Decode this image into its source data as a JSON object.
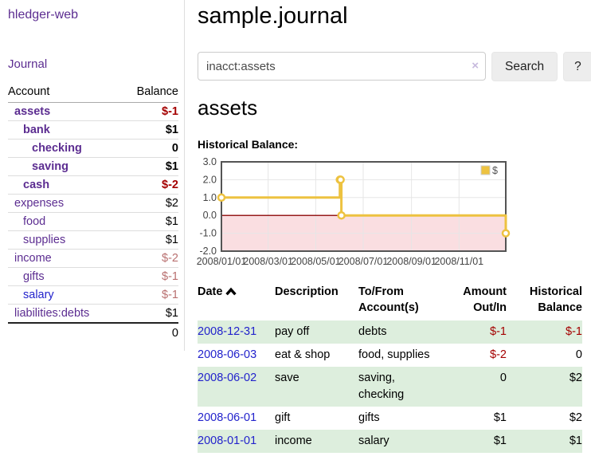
{
  "colors": {
    "purple": "#5c2d91",
    "blue": "#2222cc",
    "neg": "#a40000",
    "neg-muted": "#b97070",
    "row-green": "#ddeedd",
    "gold": "#edc240",
    "chart-frame": "#545454"
  },
  "sidebar": {
    "app_title": "hledger-web",
    "journal_label": "Journal",
    "accounts_header": {
      "account": "Account",
      "balance": "Balance"
    },
    "accounts": [
      {
        "name": "assets",
        "level": 1,
        "bold": true,
        "balance": "$-1",
        "tone": "neg"
      },
      {
        "name": "bank",
        "level": 2,
        "bold": true,
        "balance": "$1",
        "tone": "normal"
      },
      {
        "name": "checking",
        "level": 3,
        "bold": true,
        "balance": "0",
        "tone": "normal"
      },
      {
        "name": "saving",
        "level": 3,
        "bold": true,
        "balance": "$1",
        "tone": "normal"
      },
      {
        "name": "cash",
        "level": 2,
        "bold": true,
        "balance": "$-2",
        "tone": "neg"
      },
      {
        "name": "expenses",
        "level": 1,
        "bold": false,
        "balance": "$2",
        "tone": "normal"
      },
      {
        "name": "food",
        "level": 2,
        "bold": false,
        "balance": "$1",
        "tone": "normal"
      },
      {
        "name": "supplies",
        "level": 2,
        "bold": false,
        "balance": "$1",
        "tone": "normal"
      },
      {
        "name": "income",
        "level": 1,
        "bold": false,
        "balance": "$-2",
        "tone": "neg-muted"
      },
      {
        "name": "gifts",
        "level": 2,
        "bold": false,
        "balance": "$-1",
        "tone": "neg-muted"
      },
      {
        "name": "salary",
        "level": 2,
        "bold": false,
        "balance": "$-1",
        "tone": "neg-muted",
        "link_color": "blue"
      },
      {
        "name": "liabilities:debts",
        "level": 1,
        "bold": false,
        "balance": "$1",
        "tone": "normal"
      }
    ],
    "total": "0"
  },
  "main": {
    "title": "sample.journal",
    "search": {
      "query": "inacct:assets",
      "clear_icon": "×",
      "search_button": "Search",
      "help_button": "?"
    },
    "account_heading": "assets",
    "chart_label": "Historical Balance:"
  },
  "chart_data": {
    "type": "line",
    "step": true,
    "title": "Historical Balance:",
    "series": [
      {
        "name": "$",
        "color": "#edc240",
        "points": [
          [
            "2008-01-01",
            1
          ],
          [
            "2008-06-01",
            2
          ],
          [
            "2008-06-02",
            2
          ],
          [
            "2008-06-03",
            0
          ],
          [
            "2008-12-31",
            -1
          ]
        ]
      }
    ],
    "x_ticks": [
      "2008/01/01",
      "2008/03/01",
      "2008/05/01",
      "2008/07/01",
      "2008/09/01",
      "2008/11/01"
    ],
    "y_ticks": [
      "3.0",
      "2.0",
      "1.0",
      "0.0",
      "-1.0",
      "-2.0"
    ],
    "xlim": [
      "2008-01-01",
      "2008-12-31"
    ],
    "ylim": [
      -2,
      3
    ],
    "grid": true,
    "gridline_color": "#e6e6e6",
    "frame_color": "#545454",
    "negative_region_color": "#fadee1",
    "zero_line_color": "#971c1c",
    "tick_label_color": "#444444",
    "legend": {
      "label": "$",
      "position": "top-right"
    }
  },
  "register": {
    "columns": [
      "Date",
      "Description",
      "To/From Account(s)",
      "Amount Out/In",
      "Historical Balance"
    ],
    "sort_icon": "chevron-up",
    "rows": [
      {
        "date": "2008-12-31",
        "description": "pay off",
        "accounts": "debts",
        "amount": "$-1",
        "balance": "$-1"
      },
      {
        "date": "2008-06-03",
        "description": "eat & shop",
        "accounts": "food, supplies",
        "amount": "$-2",
        "balance": "0"
      },
      {
        "date": "2008-06-02",
        "description": "save",
        "accounts": "saving, checking",
        "amount": "0",
        "balance": "$2"
      },
      {
        "date": "2008-06-01",
        "description": "gift",
        "accounts": "gifts",
        "amount": "$1",
        "balance": "$2"
      },
      {
        "date": "2008-01-01",
        "description": "income",
        "accounts": "salary",
        "amount": "$1",
        "balance": "$1"
      }
    ]
  }
}
